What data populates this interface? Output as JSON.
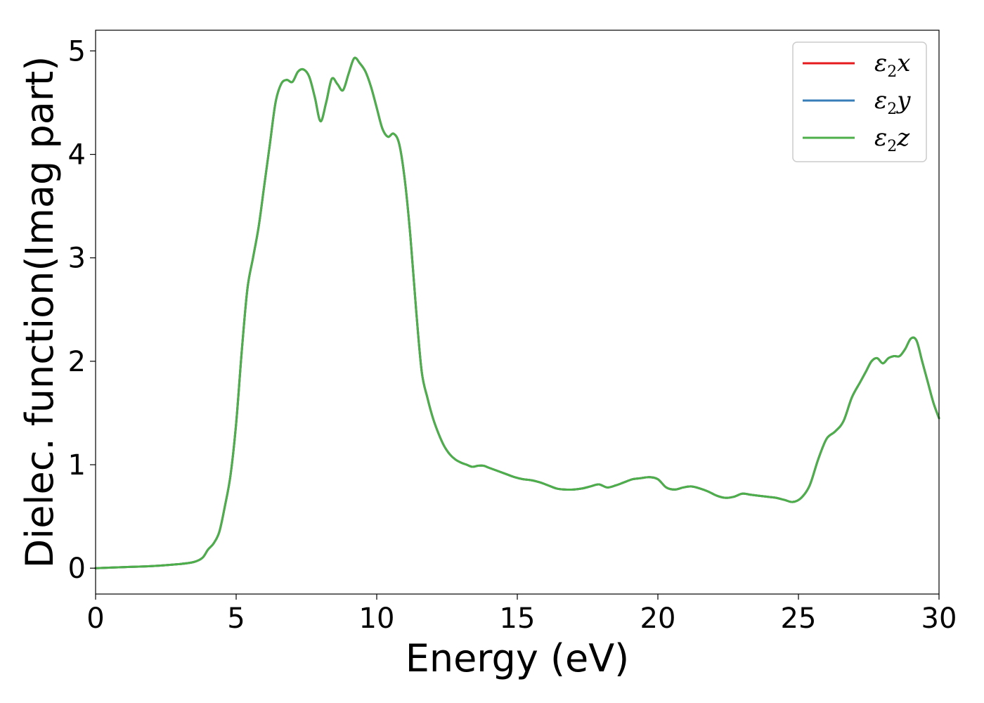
{
  "chart_data": {
    "type": "line",
    "title": "",
    "xlabel": "Energy (eV)",
    "ylabel": "Dielec. function(Imag part)",
    "xlim": [
      0,
      30
    ],
    "ylim": [
      -0.25,
      5.2
    ],
    "xticks": [
      0,
      5,
      10,
      15,
      20,
      25,
      30
    ],
    "yticks": [
      0,
      1,
      2,
      3,
      4,
      5
    ],
    "grid": false,
    "legend_position": "top-right",
    "x": [
      0,
      1,
      2,
      3,
      3.5,
      3.8,
      4.0,
      4.2,
      4.4,
      4.6,
      4.8,
      5.0,
      5.2,
      5.4,
      5.6,
      5.8,
      6.0,
      6.2,
      6.4,
      6.6,
      6.8,
      7.0,
      7.2,
      7.4,
      7.6,
      7.8,
      8.0,
      8.2,
      8.4,
      8.6,
      8.8,
      9.0,
      9.2,
      9.4,
      9.6,
      9.8,
      10.0,
      10.2,
      10.4,
      10.6,
      10.8,
      11.0,
      11.2,
      11.4,
      11.6,
      11.8,
      12.0,
      12.2,
      12.4,
      12.6,
      12.8,
      13.0,
      13.2,
      13.4,
      13.6,
      13.8,
      14.0,
      14.3,
      14.6,
      14.9,
      15.2,
      15.5,
      15.8,
      16.1,
      16.4,
      16.7,
      17.0,
      17.3,
      17.6,
      17.9,
      18.2,
      18.5,
      18.8,
      19.1,
      19.4,
      19.7,
      20.0,
      20.3,
      20.6,
      20.9,
      21.2,
      21.5,
      21.8,
      22.1,
      22.4,
      22.7,
      23.0,
      23.3,
      23.6,
      23.9,
      24.2,
      24.5,
      24.8,
      25.1,
      25.4,
      25.7,
      26.0,
      26.3,
      26.6,
      26.9,
      27.2,
      27.4,
      27.6,
      27.8,
      28.0,
      28.2,
      28.4,
      28.6,
      28.8,
      29.0,
      29.2,
      29.4,
      29.6,
      29.8,
      30.0
    ],
    "series": [
      {
        "name": "ε₂x",
        "color": "#e41a1c",
        "values": [
          0.0,
          0.01,
          0.02,
          0.04,
          0.06,
          0.1,
          0.18,
          0.24,
          0.35,
          0.6,
          0.9,
          1.4,
          2.1,
          2.7,
          3.0,
          3.3,
          3.7,
          4.1,
          4.5,
          4.68,
          4.72,
          4.7,
          4.8,
          4.82,
          4.75,
          4.55,
          4.32,
          4.5,
          4.73,
          4.68,
          4.62,
          4.78,
          4.93,
          4.88,
          4.8,
          4.65,
          4.45,
          4.25,
          4.17,
          4.2,
          4.1,
          3.75,
          3.2,
          2.5,
          1.9,
          1.65,
          1.45,
          1.3,
          1.18,
          1.1,
          1.05,
          1.02,
          1.0,
          0.98,
          0.99,
          0.99,
          0.97,
          0.94,
          0.91,
          0.88,
          0.86,
          0.85,
          0.83,
          0.8,
          0.77,
          0.76,
          0.76,
          0.77,
          0.79,
          0.81,
          0.78,
          0.8,
          0.83,
          0.86,
          0.87,
          0.88,
          0.86,
          0.78,
          0.76,
          0.78,
          0.79,
          0.77,
          0.74,
          0.7,
          0.68,
          0.69,
          0.72,
          0.71,
          0.7,
          0.69,
          0.68,
          0.66,
          0.64,
          0.68,
          0.8,
          1.05,
          1.25,
          1.32,
          1.42,
          1.65,
          1.8,
          1.9,
          2.0,
          2.03,
          1.98,
          2.03,
          2.05,
          2.05,
          2.12,
          2.22,
          2.2,
          2.0,
          1.8,
          1.6,
          1.45
        ]
      },
      {
        "name": "ε₂y",
        "color": "#377eb8",
        "values": [
          0.0,
          0.01,
          0.02,
          0.04,
          0.06,
          0.1,
          0.18,
          0.24,
          0.35,
          0.6,
          0.9,
          1.4,
          2.1,
          2.7,
          3.0,
          3.3,
          3.7,
          4.1,
          4.5,
          4.68,
          4.72,
          4.7,
          4.8,
          4.82,
          4.75,
          4.55,
          4.32,
          4.5,
          4.73,
          4.68,
          4.62,
          4.78,
          4.93,
          4.88,
          4.8,
          4.65,
          4.45,
          4.25,
          4.17,
          4.2,
          4.1,
          3.75,
          3.2,
          2.5,
          1.9,
          1.65,
          1.45,
          1.3,
          1.18,
          1.1,
          1.05,
          1.02,
          1.0,
          0.98,
          0.99,
          0.99,
          0.97,
          0.94,
          0.91,
          0.88,
          0.86,
          0.85,
          0.83,
          0.8,
          0.77,
          0.76,
          0.76,
          0.77,
          0.79,
          0.81,
          0.78,
          0.8,
          0.83,
          0.86,
          0.87,
          0.88,
          0.86,
          0.78,
          0.76,
          0.78,
          0.79,
          0.77,
          0.74,
          0.7,
          0.68,
          0.69,
          0.72,
          0.71,
          0.7,
          0.69,
          0.68,
          0.66,
          0.64,
          0.68,
          0.8,
          1.05,
          1.25,
          1.32,
          1.42,
          1.65,
          1.8,
          1.9,
          2.0,
          2.03,
          1.98,
          2.03,
          2.05,
          2.05,
          2.12,
          2.22,
          2.2,
          2.0,
          1.8,
          1.6,
          1.45
        ]
      },
      {
        "name": "ε₂z",
        "color": "#4daf4a",
        "values": [
          0.0,
          0.01,
          0.02,
          0.04,
          0.06,
          0.1,
          0.18,
          0.24,
          0.35,
          0.6,
          0.9,
          1.4,
          2.1,
          2.7,
          3.0,
          3.3,
          3.7,
          4.1,
          4.5,
          4.68,
          4.72,
          4.7,
          4.8,
          4.82,
          4.75,
          4.55,
          4.32,
          4.5,
          4.73,
          4.68,
          4.62,
          4.78,
          4.93,
          4.88,
          4.8,
          4.65,
          4.45,
          4.25,
          4.17,
          4.2,
          4.1,
          3.75,
          3.2,
          2.5,
          1.9,
          1.65,
          1.45,
          1.3,
          1.18,
          1.1,
          1.05,
          1.02,
          1.0,
          0.98,
          0.99,
          0.99,
          0.97,
          0.94,
          0.91,
          0.88,
          0.86,
          0.85,
          0.83,
          0.8,
          0.77,
          0.76,
          0.76,
          0.77,
          0.79,
          0.81,
          0.78,
          0.8,
          0.83,
          0.86,
          0.87,
          0.88,
          0.86,
          0.78,
          0.76,
          0.78,
          0.79,
          0.77,
          0.74,
          0.7,
          0.68,
          0.69,
          0.72,
          0.71,
          0.7,
          0.69,
          0.68,
          0.66,
          0.64,
          0.68,
          0.8,
          1.05,
          1.25,
          1.32,
          1.42,
          1.65,
          1.8,
          1.9,
          2.0,
          2.03,
          1.98,
          2.03,
          2.05,
          2.05,
          2.12,
          2.22,
          2.2,
          2.0,
          1.8,
          1.6,
          1.45
        ]
      }
    ],
    "legend": [
      {
        "symbol": "ε",
        "sub": "2",
        "suffix": "x"
      },
      {
        "symbol": "ε",
        "sub": "2",
        "suffix": "y"
      },
      {
        "symbol": "ε",
        "sub": "2",
        "suffix": "z"
      }
    ]
  }
}
